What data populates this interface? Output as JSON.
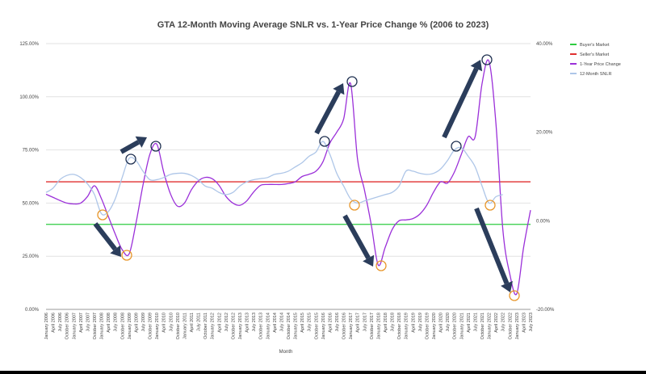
{
  "chart_data": {
    "type": "line",
    "title": "GTA 12-Month Moving Average SNLR vs. 1-Year Price Change % (2006 to 2023)",
    "xlabel": "Month",
    "ylabel_left": "",
    "ylabel_right": "",
    "left_axis": {
      "range": [
        0,
        125
      ],
      "ticks": [
        "0.00%",
        "25.00%",
        "50.00%",
        "75.00%",
        "100.00%",
        "125.00%"
      ],
      "tick_values": [
        0,
        25,
        50,
        75,
        100,
        125
      ]
    },
    "right_axis": {
      "range": [
        -20,
        40
      ],
      "ticks": [
        "-20.00%",
        "0.00%",
        "20.00%",
        "40.00%"
      ],
      "tick_values": [
        -20,
        0,
        20,
        40
      ]
    },
    "grid": true,
    "legend_position": "top-right",
    "categories": [
      "January 2006",
      "April 2006",
      "July 2006",
      "October 2006",
      "January 2007",
      "April 2007",
      "July 2007",
      "October 2007",
      "January 2008",
      "April 2008",
      "July 2008",
      "October 2008",
      "January 2009",
      "April 2009",
      "July 2009",
      "October 2009",
      "January 2010",
      "April 2010",
      "July 2010",
      "October 2010",
      "January 2011",
      "April 2011",
      "July 2011",
      "October 2011",
      "January 2012",
      "April 2012",
      "July 2012",
      "October 2012",
      "January 2013",
      "April 2013",
      "July 2013",
      "October 2013",
      "January 2014",
      "April 2014",
      "July 2014",
      "October 2014",
      "January 2015",
      "April 2015",
      "July 2015",
      "October 2015",
      "January 2016",
      "April 2016",
      "July 2016",
      "October 2016",
      "January 2017",
      "April 2017",
      "July 2017",
      "October 2017",
      "January 2018",
      "April 2018",
      "July 2018",
      "October 2018",
      "January 2019",
      "April 2019",
      "July 2019",
      "October 2019",
      "January 2020",
      "April 2020",
      "July 2020",
      "October 2020",
      "January 2021",
      "April 2021",
      "July 2021",
      "October 2021",
      "January 2022",
      "April 2022",
      "July 2022",
      "October 2022",
      "January 2023",
      "April 2023",
      "July 2023"
    ],
    "series": [
      {
        "name": "Buyer's Market",
        "axis": "left",
        "constant": 40,
        "color": "#2ecc40"
      },
      {
        "name": "Seller's Market",
        "axis": "left",
        "constant": 60,
        "color": "#e03030"
      },
      {
        "name": "1-Year Price Change",
        "axis": "right",
        "color": "#9b30d9",
        "values": [
          6.0,
          5.3,
          4.6,
          4.0,
          3.8,
          4.0,
          5.5,
          7.9,
          5.0,
          1.0,
          -3,
          -6.5,
          -7.5,
          -0.5,
          8,
          15,
          17.3,
          11,
          6,
          3.3,
          4,
          7,
          9,
          9.8,
          9.5,
          8,
          5.5,
          4,
          3.5,
          4.5,
          6.5,
          8,
          8.2,
          8.2,
          8.2,
          8.4,
          8.8,
          10,
          10.5,
          11.2,
          13.3,
          17.5,
          20,
          23,
          31,
          14,
          7,
          -1,
          -10,
          -6,
          -2,
          0,
          0.2,
          0.5,
          1.5,
          3.5,
          6.5,
          8.8,
          8.5,
          11,
          15,
          19,
          19,
          31,
          36,
          22,
          -2,
          -12,
          -16.5,
          -6,
          2.4
        ]
      },
      {
        "name": "12-Month SNLR",
        "axis": "left",
        "color": "#aec6e8",
        "values": [
          55,
          57,
          61,
          63,
          63.5,
          62,
          59,
          54,
          45,
          46,
          52,
          62,
          71,
          70,
          65,
          61,
          61,
          62,
          63.5,
          64,
          64,
          63,
          61,
          58,
          57,
          55,
          54,
          55,
          58,
          60,
          61,
          61.5,
          62,
          63.5,
          64,
          65,
          67,
          69,
          72,
          74,
          79,
          73,
          64,
          58,
          52,
          50,
          51,
          52,
          53,
          54,
          55,
          58,
          65,
          65,
          64,
          63.5,
          64,
          66,
          70,
          75,
          76,
          72,
          67,
          58,
          50,
          53,
          54,
          null,
          null,
          null,
          null
        ]
      }
    ],
    "annotation_colors": {
      "peak": "#1f3050",
      "trough": "#e8962a",
      "arrow": "#2b3d5b"
    }
  }
}
